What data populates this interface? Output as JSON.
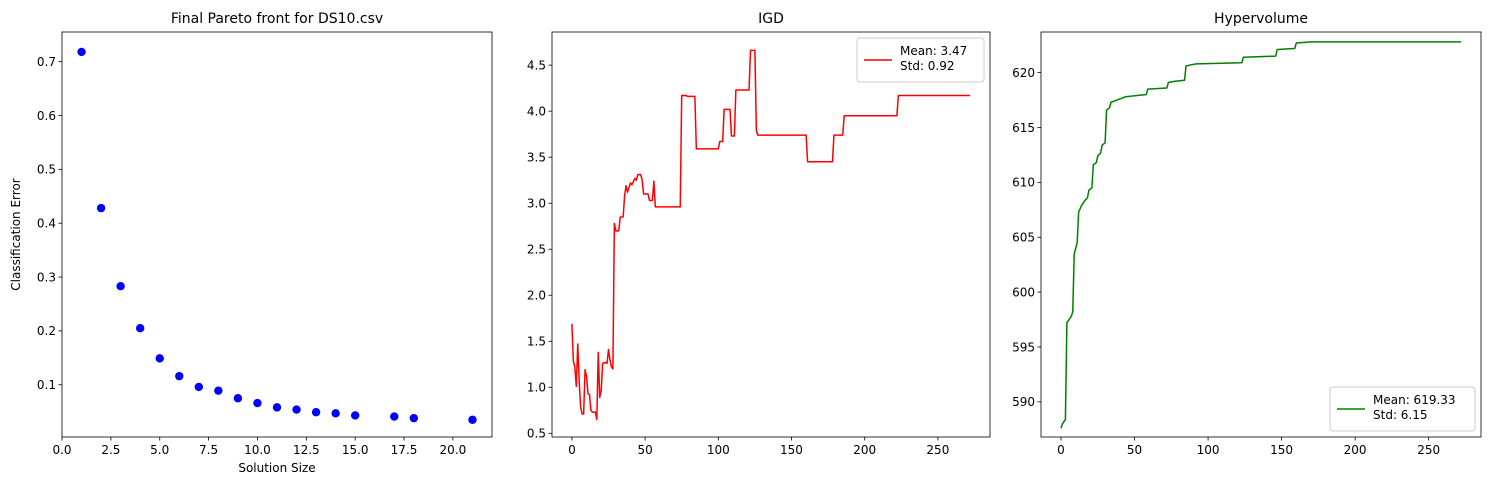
{
  "chart_data": [
    {
      "type": "scatter",
      "title": "Final Pareto front for DS10.csv",
      "xlabel": "Solution Size",
      "ylabel": "Classification Error",
      "xlim": [
        0,
        22
      ],
      "ylim": [
        0.003,
        0.755
      ],
      "xticks": [
        0,
        2.5,
        5,
        7.5,
        10,
        12.5,
        15,
        17.5,
        20
      ],
      "xtick_labels": [
        "0.0",
        "2.5",
        "5.0",
        "7.5",
        "10.0",
        "12.5",
        "15.0",
        "17.5",
        "20.0"
      ],
      "yticks": [
        0.1,
        0.2,
        0.3,
        0.4,
        0.5,
        0.6,
        0.7
      ],
      "ytick_labels": [
        "0.1",
        "0.2",
        "0.3",
        "0.4",
        "0.5",
        "0.6",
        "0.7"
      ],
      "color": "#0000ff",
      "grid": false,
      "points": [
        [
          1,
          0.718
        ],
        [
          2,
          0.428
        ],
        [
          3,
          0.283
        ],
        [
          4,
          0.205
        ],
        [
          5,
          0.149
        ],
        [
          6,
          0.116
        ],
        [
          7,
          0.096
        ],
        [
          8,
          0.089
        ],
        [
          9,
          0.075
        ],
        [
          10,
          0.066
        ],
        [
          11,
          0.058
        ],
        [
          12,
          0.054
        ],
        [
          13,
          0.049
        ],
        [
          14,
          0.047
        ],
        [
          15,
          0.043
        ],
        [
          17,
          0.041
        ],
        [
          18,
          0.038
        ],
        [
          21,
          0.035
        ]
      ]
    },
    {
      "type": "line",
      "title": "IGD",
      "xlabel": "",
      "ylabel": "",
      "xlim": [
        -13.6,
        285.6
      ],
      "ylim": [
        0.46,
        4.86
      ],
      "xticks": [
        0,
        50,
        100,
        150,
        200,
        250
      ],
      "xtick_labels": [
        "0",
        "50",
        "100",
        "150",
        "200",
        "250"
      ],
      "yticks": [
        0.5,
        1.0,
        1.5,
        2.0,
        2.5,
        3.0,
        3.5,
        4.0,
        4.5
      ],
      "ytick_labels": [
        "0.5",
        "1.0",
        "1.5",
        "2.0",
        "2.5",
        "3.0",
        "3.5",
        "4.0",
        "4.5"
      ],
      "color": "#ff0000",
      "grid": false,
      "legend": {
        "position": "top-right",
        "lines": [
          "Mean: 3.47",
          "Std: 0.92"
        ]
      },
      "points": [
        [
          0,
          1.69
        ],
        [
          1,
          1.28
        ],
        [
          2,
          1.22
        ],
        [
          3,
          1.01
        ],
        [
          4,
          1.47
        ],
        [
          5,
          1.05
        ],
        [
          6,
          0.78
        ],
        [
          7,
          0.71
        ],
        [
          8,
          0.71
        ],
        [
          9,
          1.19
        ],
        [
          10,
          1.12
        ],
        [
          11,
          0.93
        ],
        [
          12,
          0.92
        ],
        [
          13,
          0.75
        ],
        [
          14,
          0.73
        ],
        [
          16,
          0.73
        ],
        [
          17,
          0.65
        ],
        [
          18,
          1.38
        ],
        [
          19,
          0.89
        ],
        [
          20,
          0.96
        ],
        [
          21,
          1.26
        ],
        [
          23,
          1.27
        ],
        [
          24,
          1.26
        ],
        [
          25,
          1.41
        ],
        [
          26,
          1.3
        ],
        [
          27,
          1.22
        ],
        [
          28,
          1.2
        ],
        [
          29,
          2.78
        ],
        [
          30,
          2.7
        ],
        [
          32,
          2.7
        ],
        [
          33,
          2.85
        ],
        [
          35,
          2.85
        ],
        [
          36,
          3.08
        ],
        [
          37,
          3.19
        ],
        [
          38,
          3.12
        ],
        [
          40,
          3.22
        ],
        [
          41,
          3.2
        ],
        [
          43,
          3.27
        ],
        [
          44,
          3.25
        ],
        [
          45,
          3.31
        ],
        [
          47,
          3.31
        ],
        [
          48,
          3.25
        ],
        [
          49,
          3.1
        ],
        [
          52,
          3.1
        ],
        [
          53,
          3.03
        ],
        [
          55,
          3.03
        ],
        [
          56,
          3.24
        ],
        [
          57,
          2.96
        ],
        [
          74,
          2.96
        ],
        [
          75,
          4.17
        ],
        [
          78,
          4.17
        ],
        [
          79,
          4.16
        ],
        [
          84,
          4.16
        ],
        [
          85,
          3.59
        ],
        [
          100,
          3.59
        ],
        [
          101,
          3.67
        ],
        [
          103,
          3.67
        ],
        [
          104,
          4.02
        ],
        [
          108,
          4.02
        ],
        [
          109,
          3.73
        ],
        [
          111,
          3.73
        ],
        [
          112,
          4.23
        ],
        [
          121,
          4.23
        ],
        [
          122,
          4.66
        ],
        [
          125,
          4.66
        ],
        [
          126,
          3.79
        ],
        [
          127,
          3.74
        ],
        [
          160,
          3.74
        ],
        [
          161,
          3.45
        ],
        [
          178,
          3.45
        ],
        [
          179,
          3.74
        ],
        [
          185,
          3.74
        ],
        [
          186,
          3.95
        ],
        [
          222,
          3.95
        ],
        [
          223,
          4.17
        ],
        [
          272,
          4.17
        ]
      ]
    },
    {
      "type": "line",
      "title": "Hypervolume",
      "xlabel": "",
      "ylabel": "",
      "xlim": [
        -13.6,
        285.6
      ],
      "ylim": [
        586.8,
        623.7
      ],
      "xticks": [
        0,
        50,
        100,
        150,
        200,
        250
      ],
      "xtick_labels": [
        "0",
        "50",
        "100",
        "150",
        "200",
        "250"
      ],
      "yticks": [
        590,
        595,
        600,
        605,
        610,
        615,
        620
      ],
      "ytick_labels": [
        "590",
        "595",
        "600",
        "605",
        "610",
        "615",
        "620"
      ],
      "color": "#008000",
      "grid": false,
      "legend": {
        "position": "bottom-right",
        "lines": [
          "Mean: 619.33",
          "Std: 6.15"
        ]
      },
      "points": [
        [
          0,
          587.6
        ],
        [
          1,
          588.0
        ],
        [
          3,
          588.4
        ],
        [
          4,
          597.2
        ],
        [
          7,
          597.8
        ],
        [
          8,
          598.2
        ],
        [
          9,
          603.5
        ],
        [
          11,
          604.5
        ],
        [
          12,
          607.3
        ],
        [
          14,
          607.9
        ],
        [
          16,
          608.3
        ],
        [
          18,
          608.6
        ],
        [
          19,
          609.3
        ],
        [
          21,
          609.5
        ],
        [
          22,
          611.6
        ],
        [
          24,
          611.8
        ],
        [
          25,
          612.4
        ],
        [
          27,
          612.7
        ],
        [
          28,
          613.4
        ],
        [
          30,
          613.6
        ],
        [
          31,
          616.6
        ],
        [
          33,
          616.8
        ],
        [
          34,
          617.3
        ],
        [
          38,
          617.5
        ],
        [
          40,
          617.6
        ],
        [
          44,
          617.8
        ],
        [
          58,
          618.0
        ],
        [
          59,
          618.5
        ],
        [
          72,
          618.6
        ],
        [
          73,
          619.1
        ],
        [
          77,
          619.2
        ],
        [
          84,
          619.3
        ],
        [
          85,
          620.6
        ],
        [
          88,
          620.7
        ],
        [
          92,
          620.8
        ],
        [
          123,
          620.9
        ],
        [
          124,
          621.4
        ],
        [
          146,
          621.5
        ],
        [
          147,
          622.1
        ],
        [
          159,
          622.2
        ],
        [
          160,
          622.7
        ],
        [
          170,
          622.8
        ],
        [
          272,
          622.8
        ]
      ]
    }
  ]
}
